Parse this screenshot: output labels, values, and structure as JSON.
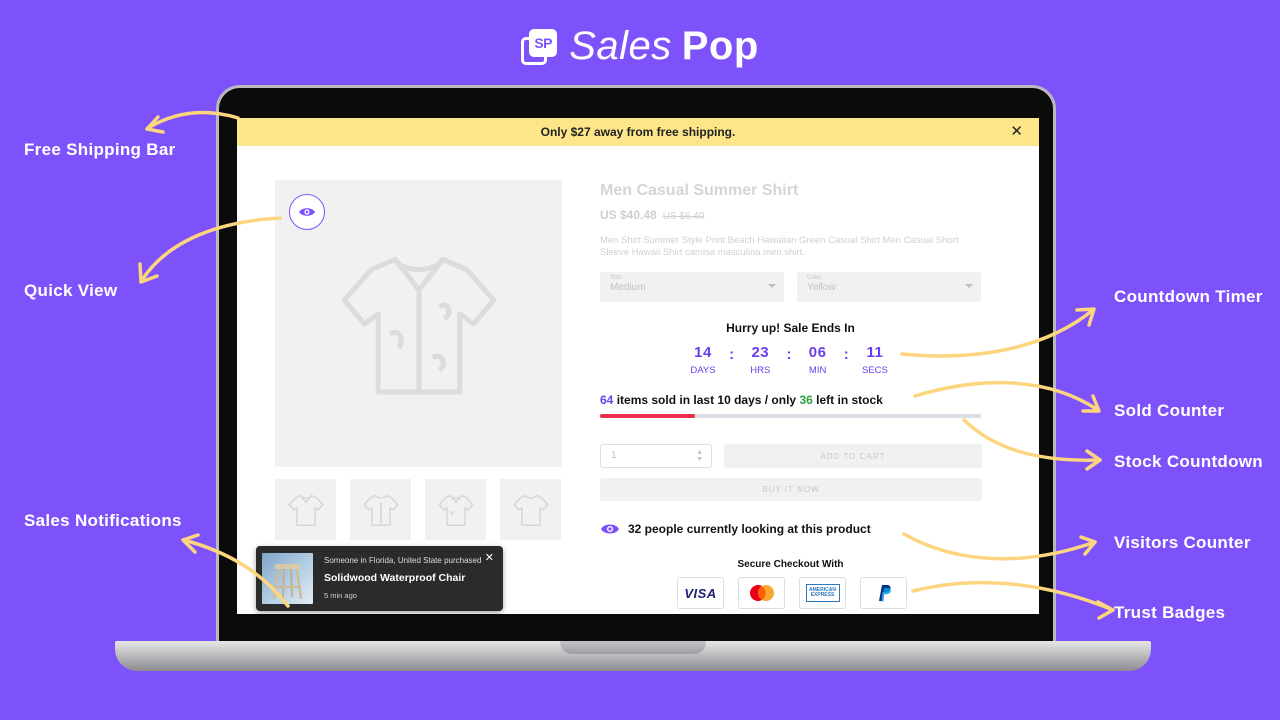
{
  "brand": {
    "badge_text": "SP",
    "word_light": "Sales",
    "word_bold": "Pop"
  },
  "shipping_bar": {
    "message": "Only $27 away from free shipping.",
    "close_glyph": "✕"
  },
  "product": {
    "title": "Men Casual Summer Shirt",
    "price": "US $40.48",
    "old_price": "US $6.40",
    "description": "Men Shirt Summer Style Print Beach Hawaiian Green Casual Shirt Men Casual Short Sleeve Hawaii Shirt camisa masculina men shirt.",
    "size_label": "Size",
    "size_value": "Medium",
    "color_label": "Color",
    "color_value": "Yellow"
  },
  "countdown": {
    "heading": "Hurry up! Sale Ends In",
    "days": "14",
    "days_label": "DAYS",
    "hours": "23",
    "hours_label": "HRS",
    "minutes": "06",
    "minutes_label": "MIN",
    "seconds": "11",
    "seconds_label": "SECS",
    "separator": ":"
  },
  "sold_counter": {
    "sold_count": "64",
    "middle_text": "items sold in last 10 days / only",
    "left_count": "36",
    "end_text": "left in stock",
    "stock_fill_fraction": 0.25
  },
  "cart": {
    "quantity": "1",
    "add_to_cart_label": "ADD TO CART",
    "buy_now_label": "BUY IT NOW"
  },
  "visitors": {
    "text": "32 people currently looking at this product"
  },
  "trust": {
    "title": "Secure Checkout With",
    "visa_text": "VISA",
    "amex_text": "AMERICAN EXPRESS"
  },
  "notification": {
    "line1": "Someone in Florida, United State purchased",
    "product": "Solidwood Waterproof Chair",
    "time": "5 min ago",
    "close_glyph": "✕"
  },
  "callouts": {
    "free_shipping": "Free Shipping Bar",
    "quick_view": "Quick View",
    "sales_notifications": "Sales Notifications",
    "countdown_timer": "Countdown Timer",
    "sold_counter": "Sold Counter",
    "stock_countdown": "Stock Countdown",
    "visitors_counter": "Visitors Counter",
    "trust_badges": "Trust Badges"
  },
  "colors": {
    "background": "#7e52fb",
    "accent": "#6a3df0",
    "shipping_bar": "#fde68a",
    "stock_fill": "#ee2e4c",
    "left_count": "#2ea043",
    "arrow": "#fcd57e"
  },
  "icons": {
    "quick_view": "eye-icon",
    "visitors": "eye-icon",
    "product": "shirt-icon",
    "payment": [
      "visa-icon",
      "mastercard-icon",
      "amex-icon",
      "paypal-icon"
    ]
  }
}
